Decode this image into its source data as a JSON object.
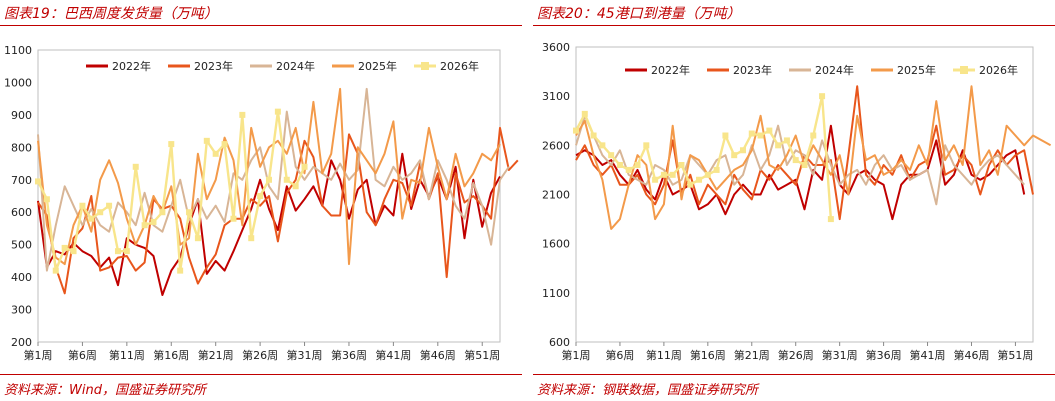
{
  "charts": [
    {
      "title": "图表19：巴西周度发货量（万吨）",
      "source": "资料来源：Wind，国盛证券研究所",
      "chart_data": {
        "type": "line",
        "ylim": [
          200,
          1100
        ],
        "yticks": [
          200,
          300,
          400,
          500,
          600,
          700,
          800,
          900,
          1000,
          1100
        ],
        "xticks": [
          "第1周",
          "第6周",
          "第11周",
          "第16周",
          "第21周",
          "第26周",
          "第31周",
          "第36周",
          "第41周",
          "第46周",
          "第51周"
        ],
        "legend_position": "top",
        "series": [
          {
            "name": "2022年",
            "color": "#c00000",
            "values": [
              635,
              430,
              480,
              470,
              505,
              480,
              465,
              430,
              460,
              375,
              520,
              500,
              490,
              465,
              345,
              420,
              460,
              560,
              640,
              410,
              450,
              420,
              480,
              545,
              610,
              700,
              610,
              545,
              680,
              605,
              640,
              680,
              620,
              760,
              700,
              580,
              670,
              700,
              560,
              620,
              590,
              780,
              610,
              700,
              650,
              710,
              640,
              740,
              520,
              700,
              555,
              660,
              710
            ]
          },
          {
            "name": "2023年",
            "color": "#e8561c",
            "values": [
              630,
              590,
              430,
              350,
              520,
              550,
              650,
              420,
              430,
              460,
              465,
              420,
              445,
              640,
              610,
              620,
              580,
              460,
              380,
              430,
              470,
              560,
              580,
              580,
              640,
              620,
              650,
              510,
              660,
              700,
              820,
              770,
              620,
              590,
              590,
              840,
              780,
              600,
              560,
              640,
              700,
              690,
              620,
              750,
              640,
              720,
              400,
              720,
              630,
              650,
              620,
              580,
              860,
              730,
              760
            ]
          },
          {
            "name": "2024年",
            "color": "#d8b596",
            "values": [
              840,
              420,
              560,
              680,
              620,
              560,
              610,
              560,
              540,
              630,
              600,
              560,
              660,
              560,
              540,
              620,
              700,
              580,
              640,
              580,
              620,
              570,
              720,
              700,
              760,
              800,
              680,
              640,
              910,
              740,
              700,
              740,
              720,
              700,
              750,
              700,
              730,
              980,
              700,
              680,
              740,
              700,
              720,
              760,
              640,
              760,
              700,
              620,
              580,
              690,
              620,
              500,
              700,
              740
            ]
          },
          {
            "name": "2025年",
            "color": "#f39a4a",
            "values": [
              820,
              560,
              460,
              440,
              560,
              620,
              540,
              700,
              760,
              690,
              580,
              500,
              560,
              650,
              600,
              680,
              500,
              520,
              780,
              640,
              700,
              830,
              760,
              560,
              860,
              740,
              800,
              820,
              780,
              860,
              720,
              940,
              720,
              780,
              980,
              440,
              800,
              760,
              720,
              780,
              880,
              580,
              700,
              690,
              860,
              740,
              640,
              780,
              680,
              720,
              780,
              760,
              810
            ]
          },
          {
            "name": "2026年",
            "color": "#f8e58b",
            "markers": true,
            "values": [
              695,
              640,
              420,
              490,
              480,
              620,
              580,
              600,
              620,
              480,
              480,
              740,
              560,
              570,
              600,
              810,
              420,
              600,
              520,
              820,
              780,
              810,
              580,
              900,
              520,
              650,
              700,
              910,
              700,
              680,
              740
            ]
          }
        ]
      }
    },
    {
      "title": "图表20：45港口到港量（万吨）",
      "source": "资料来源：钢联数据，国盛证券研究所",
      "chart_data": {
        "type": "line",
        "ylim": [
          600,
          3600
        ],
        "yticks": [
          600,
          1100,
          1600,
          2100,
          2600,
          3100,
          3600
        ],
        "xticks": [
          "第1周",
          "第6周",
          "第11周",
          "第16周",
          "第21周",
          "第26周",
          "第31周",
          "第36周",
          "第41周",
          "第46周",
          "第51周"
        ],
        "legend_position": "top",
        "series": [
          {
            "name": "2022年",
            "color": "#c00000",
            "values": [
              2500,
              2550,
              2500,
              2400,
              2450,
              2300,
              2200,
              2350,
              2150,
              2050,
              2300,
              2100,
              2150,
              2200,
              1950,
              2000,
              2100,
              1900,
              2100,
              2200,
              2100,
              2100,
              2300,
              2150,
              2200,
              2250,
              1950,
              2350,
              2250,
              2800,
              2200,
              2100,
              2300,
              2350,
              2250,
              2200,
              1850,
              2200,
              2300,
              2300,
              2350,
              2650,
              2200,
              2300,
              2550,
              2300,
              2250,
              2300,
              2400,
              2500,
              2550,
              2100
            ]
          },
          {
            "name": "2023年",
            "color": "#e8561c",
            "values": [
              2450,
              2600,
              2400,
              2300,
              2400,
              2200,
              2200,
              2300,
              2100,
              2000,
              2200,
              2650,
              2100,
              2300,
              2000,
              2200,
              2100,
              2000,
              2300,
              2150,
              2050,
              2350,
              2250,
              2400,
              2300,
              2200,
              2500,
              2400,
              2400,
              2450,
              1850,
              2500,
              3200,
              2300,
              2200,
              2400,
              2300,
              2500,
              2250,
              2400,
              2450,
              2800,
              2300,
              2350,
              2500,
              2400,
              2100,
              2400,
              2550,
              2400,
              2500,
              2550,
              2100
            ]
          },
          {
            "name": "2023年_unused",
            "hidden": true,
            "values": []
          },
          {
            "name": "2024年",
            "color": "#d8b596",
            "values": [
              2600,
              2900,
              2700,
              2500,
              2400,
              2550,
              2300,
              2250,
              2200,
              2400,
              2350,
              2200,
              2250,
              2500,
              2400,
              2300,
              2450,
              2500,
              2200,
              2300,
              2600,
              2350,
              2500,
              2800,
              2400,
              2550,
              2500,
              2300,
              2650,
              2400,
              2200,
              2300,
              2350,
              2200,
              2400,
              2500,
              2350,
              2400,
              2250,
              2300,
              2350,
              2000,
              2600,
              2400,
              2300,
              2200,
              2350,
              2450,
              2500,
              2400,
              2300,
              2200
            ]
          },
          {
            "name": "2025年",
            "color": "#f39a4a",
            "values": [
              2700,
              2850,
              2500,
              2250,
              1750,
              1850,
              2200,
              2500,
              2400,
              1850,
              2000,
              2800,
              2050,
              2500,
              2450,
              2300,
              2150,
              2250,
              2350,
              2400,
              2550,
              2900,
              2400,
              2350,
              2500,
              2700,
              2400,
              2600,
              2450,
              2300,
              2500,
              2100,
              2900,
              2450,
              2500,
              2300,
              2350,
              2450,
              2350,
              2600,
              2400,
              3050,
              2450,
              2600,
              2400,
              3200,
              2400,
              2550,
              2300,
              2800,
              2700,
              2600,
              2700,
              2650,
              2600
            ]
          },
          {
            "name": "2026年",
            "color": "#f8e58b",
            "markers": true,
            "values": [
              2750,
              2920,
              2700,
              2600,
              2500,
              2400,
              2350,
              2400,
              2600,
              2250,
              2300,
              2300,
              2400,
              2200,
              2250,
              2300,
              2350,
              2700,
              2500,
              2550,
              2720,
              2700,
              2750,
              2600,
              2650,
              2450,
              2400,
              2700,
              3100,
              1850
            ]
          }
        ]
      }
    }
  ]
}
